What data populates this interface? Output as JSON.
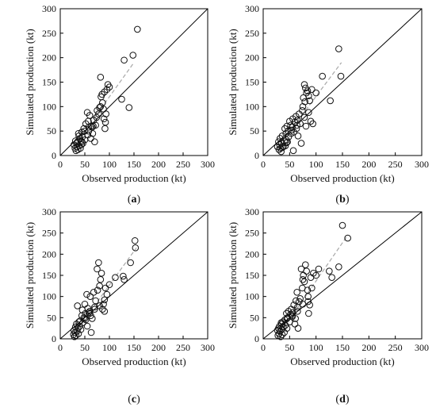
{
  "chart_data": [
    {
      "type": "scatter",
      "panel_label": "a",
      "xlabel": "Observed production (kt)",
      "ylabel": "Simulated production (kt)",
      "xlim": [
        0,
        300
      ],
      "ylim": [
        0,
        300
      ],
      "xticks": [
        "0",
        "50",
        "100",
        "150",
        "200",
        "250",
        "300"
      ],
      "yticks": [
        "0",
        "50",
        "100",
        "150",
        "200",
        "250",
        "300"
      ],
      "grid": false,
      "reference_line": "1:1",
      "trend_line": {
        "x": [
          30,
          150
        ],
        "y": [
          22,
          190
        ]
      },
      "points": [
        [
          28,
          22
        ],
        [
          30,
          15
        ],
        [
          31,
          30
        ],
        [
          32,
          10
        ],
        [
          33,
          25
        ],
        [
          34,
          18
        ],
        [
          35,
          28
        ],
        [
          36,
          12
        ],
        [
          37,
          45
        ],
        [
          38,
          20
        ],
        [
          40,
          35
        ],
        [
          41,
          15
        ],
        [
          42,
          30
        ],
        [
          43,
          22
        ],
        [
          44,
          48
        ],
        [
          45,
          38
        ],
        [
          46,
          25
        ],
        [
          48,
          55
        ],
        [
          50,
          32
        ],
        [
          52,
          65
        ],
        [
          55,
          88
        ],
        [
          56,
          42
        ],
        [
          57,
          70
        ],
        [
          58,
          50
        ],
        [
          60,
          82
        ],
        [
          62,
          35
        ],
        [
          63,
          60
        ],
        [
          65,
          58
        ],
        [
          66,
          45
        ],
        [
          68,
          72
        ],
        [
          70,
          28
        ],
        [
          72,
          62
        ],
        [
          74,
          78
        ],
        [
          75,
          92
        ],
        [
          78,
          85
        ],
        [
          80,
          98
        ],
        [
          82,
          160
        ],
        [
          83,
          120
        ],
        [
          85,
          125
        ],
        [
          86,
          108
        ],
        [
          88,
          95
        ],
        [
          89,
          75
        ],
        [
          90,
          130
        ],
        [
          91,
          55
        ],
        [
          92,
          68
        ],
        [
          93,
          85
        ],
        [
          95,
          135
        ],
        [
          97,
          145
        ],
        [
          100,
          140
        ],
        [
          125,
          115
        ],
        [
          130,
          195
        ],
        [
          140,
          98
        ],
        [
          148,
          205
        ],
        [
          157,
          258
        ],
        [
          38,
          40
        ],
        [
          44,
          28
        ],
        [
          50,
          50
        ],
        [
          58,
          58
        ],
        [
          67,
          60
        ],
        [
          82,
          100
        ]
      ]
    },
    {
      "type": "scatter",
      "panel_label": "b",
      "xlabel": "Observed production (kt)",
      "ylabel": "Simulated production (kt)",
      "xlim": [
        0,
        300
      ],
      "ylim": [
        0,
        300
      ],
      "xticks": [
        "0",
        "50",
        "100",
        "150",
        "200",
        "250",
        "300"
      ],
      "yticks": [
        "0",
        "50",
        "100",
        "150",
        "200",
        "250",
        "300"
      ],
      "grid": false,
      "reference_line": "1:1",
      "trend_line": {
        "x": [
          30,
          148
        ],
        "y": [
          20,
          190
        ]
      },
      "points": [
        [
          27,
          18
        ],
        [
          29,
          28
        ],
        [
          30,
          12
        ],
        [
          31,
          22
        ],
        [
          32,
          35
        ],
        [
          33,
          15
        ],
        [
          34,
          8
        ],
        [
          35,
          25
        ],
        [
          36,
          40
        ],
        [
          38,
          18
        ],
        [
          40,
          30
        ],
        [
          41,
          55
        ],
        [
          42,
          20
        ],
        [
          43,
          45
        ],
        [
          44,
          32
        ],
        [
          45,
          60
        ],
        [
          46,
          28
        ],
        [
          47,
          50
        ],
        [
          48,
          38
        ],
        [
          50,
          70
        ],
        [
          52,
          62
        ],
        [
          53,
          45
        ],
        [
          55,
          58
        ],
        [
          56,
          75
        ],
        [
          57,
          10
        ],
        [
          58,
          48
        ],
        [
          60,
          68
        ],
        [
          62,
          80
        ],
        [
          63,
          55
        ],
        [
          65,
          72
        ],
        [
          66,
          40
        ],
        [
          68,
          85
        ],
        [
          70,
          65
        ],
        [
          72,
          25
        ],
        [
          74,
          92
        ],
        [
          75,
          100
        ],
        [
          76,
          118
        ],
        [
          78,
          145
        ],
        [
          79,
          110
        ],
        [
          80,
          138
        ],
        [
          81,
          60
        ],
        [
          82,
          128
        ],
        [
          84,
          132
        ],
        [
          86,
          122
        ],
        [
          88,
          112
        ],
        [
          90,
          70
        ],
        [
          92,
          135
        ],
        [
          94,
          65
        ],
        [
          100,
          128
        ],
        [
          112,
          162
        ],
        [
          127,
          112
        ],
        [
          143,
          218
        ],
        [
          147,
          162
        ],
        [
          36,
          16
        ],
        [
          44,
          26
        ],
        [
          54,
          52
        ],
        [
          64,
          62
        ],
        [
          78,
          78
        ],
        [
          86,
          88
        ]
      ]
    },
    {
      "type": "scatter",
      "panel_label": "c",
      "xlabel": "Observed production (kt)",
      "ylabel": "Simulated production (kt)",
      "xlim": [
        0,
        300
      ],
      "ylim": [
        0,
        300
      ],
      "xticks": [
        "0",
        "50",
        "100",
        "150",
        "200",
        "250",
        "300"
      ],
      "yticks": [
        "0",
        "50",
        "100",
        "150",
        "200",
        "250",
        "300"
      ],
      "grid": false,
      "reference_line": "1:1",
      "trend_line": {
        "x": [
          30,
          155
        ],
        "y": [
          15,
          215
        ]
      },
      "points": [
        [
          27,
          10
        ],
        [
          28,
          20
        ],
        [
          29,
          5
        ],
        [
          30,
          15
        ],
        [
          31,
          28
        ],
        [
          32,
          8
        ],
        [
          33,
          35
        ],
        [
          34,
          18
        ],
        [
          35,
          78
        ],
        [
          36,
          25
        ],
        [
          37,
          12
        ],
        [
          38,
          40
        ],
        [
          40,
          30
        ],
        [
          42,
          22
        ],
        [
          44,
          55
        ],
        [
          45,
          68
        ],
        [
          46,
          38
        ],
        [
          48,
          50
        ],
        [
          50,
          82
        ],
        [
          51,
          60
        ],
        [
          52,
          45
        ],
        [
          54,
          105
        ],
        [
          55,
          30
        ],
        [
          56,
          72
        ],
        [
          58,
          62
        ],
        [
          60,
          65
        ],
        [
          61,
          100
        ],
        [
          62,
          55
        ],
        [
          63,
          15
        ],
        [
          65,
          48
        ],
        [
          68,
          110
        ],
        [
          70,
          75
        ],
        [
          72,
          90
        ],
        [
          75,
          165
        ],
        [
          76,
          115
        ],
        [
          78,
          180
        ],
        [
          80,
          125
        ],
        [
          82,
          140
        ],
        [
          84,
          155
        ],
        [
          86,
          70
        ],
        [
          88,
          82
        ],
        [
          90,
          65
        ],
        [
          92,
          120
        ],
        [
          95,
          105
        ],
        [
          100,
          128
        ],
        [
          112,
          145
        ],
        [
          128,
          148
        ],
        [
          130,
          140
        ],
        [
          143,
          180
        ],
        [
          152,
          232
        ],
        [
          153,
          215
        ],
        [
          40,
          42
        ],
        [
          50,
          48
        ],
        [
          60,
          60
        ],
        [
          70,
          70
        ],
        [
          80,
          78
        ],
        [
          90,
          92
        ]
      ]
    },
    {
      "type": "scatter",
      "panel_label": "d",
      "xlabel": "Observed production (kt)",
      "ylabel": "Simulated production (kt)",
      "xlim": [
        0,
        300
      ],
      "ylim": [
        0,
        300
      ],
      "xticks": [
        "0",
        "50",
        "100",
        "150",
        "200",
        "250",
        "300"
      ],
      "yticks": [
        "0",
        "50",
        "100",
        "150",
        "200",
        "250",
        "300"
      ],
      "grid": false,
      "reference_line": "1:1",
      "trend_line": {
        "x": [
          30,
          160
        ],
        "y": [
          10,
          245
        ]
      },
      "points": [
        [
          27,
          20
        ],
        [
          28,
          8
        ],
        [
          29,
          25
        ],
        [
          30,
          12
        ],
        [
          31,
          30
        ],
        [
          32,
          18
        ],
        [
          33,
          5
        ],
        [
          34,
          38
        ],
        [
          35,
          22
        ],
        [
          36,
          10
        ],
        [
          37,
          40
        ],
        [
          38,
          28
        ],
        [
          40,
          15
        ],
        [
          41,
          45
        ],
        [
          42,
          32
        ],
        [
          44,
          60
        ],
        [
          45,
          25
        ],
        [
          46,
          50
        ],
        [
          48,
          65
        ],
        [
          50,
          40
        ],
        [
          52,
          58
        ],
        [
          53,
          70
        ],
        [
          55,
          52
        ],
        [
          56,
          62
        ],
        [
          58,
          80
        ],
        [
          60,
          35
        ],
        [
          61,
          48
        ],
        [
          62,
          90
        ],
        [
          64,
          110
        ],
        [
          65,
          75
        ],
        [
          66,
          25
        ],
        [
          68,
          88
        ],
        [
          70,
          95
        ],
        [
          72,
          165
        ],
        [
          74,
          120
        ],
        [
          75,
          140
        ],
        [
          76,
          150
        ],
        [
          78,
          135
        ],
        [
          80,
          175
        ],
        [
          82,
          160
        ],
        [
          84,
          115
        ],
        [
          85,
          100
        ],
        [
          86,
          60
        ],
        [
          88,
          80
        ],
        [
          90,
          145
        ],
        [
          92,
          120
        ],
        [
          95,
          155
        ],
        [
          100,
          150
        ],
        [
          105,
          165
        ],
        [
          125,
          160
        ],
        [
          130,
          145
        ],
        [
          143,
          170
        ],
        [
          150,
          268
        ],
        [
          160,
          238
        ],
        [
          35,
          35
        ],
        [
          45,
          48
        ],
        [
          55,
          55
        ],
        [
          65,
          65
        ],
        [
          75,
          82
        ],
        [
          85,
          88
        ]
      ]
    }
  ]
}
